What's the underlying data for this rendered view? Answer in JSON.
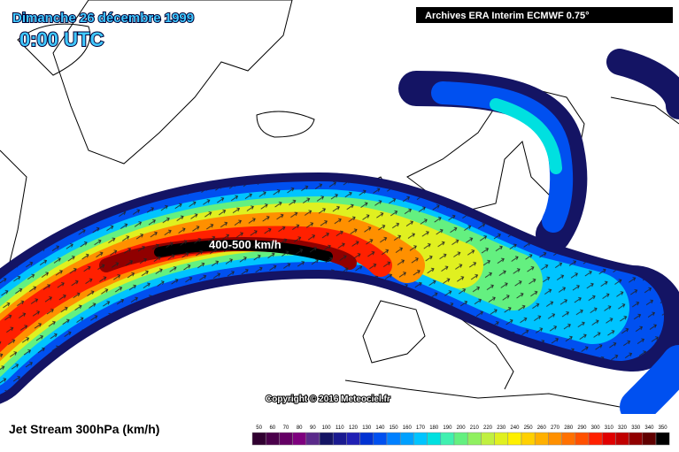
{
  "header": {
    "date": "Dimanche 26 décembre 1999",
    "time": "0:00 UTC",
    "source": "Archives ERA Interim ECMWF 0.75°"
  },
  "map": {
    "annotation": "400-500 km/h",
    "copyright": "Copyright © 2016 Meteociel.fr"
  },
  "footer": {
    "title": "Jet Stream 300hPa (km/h)",
    "legend": [
      {
        "label": 50,
        "color": "#300030"
      },
      {
        "label": 60,
        "color": "#4a004a"
      },
      {
        "label": 70,
        "color": "#640064"
      },
      {
        "label": 80,
        "color": "#7e007e"
      },
      {
        "label": 90,
        "color": "#5a2a8a"
      },
      {
        "label": 100,
        "color": "#141464"
      },
      {
        "label": 110,
        "color": "#1a1a90"
      },
      {
        "label": 120,
        "color": "#2020b4"
      },
      {
        "label": 130,
        "color": "#0032d2"
      },
      {
        "label": 140,
        "color": "#0050f0"
      },
      {
        "label": 150,
        "color": "#0080ff"
      },
      {
        "label": 160,
        "color": "#00a0ff"
      },
      {
        "label": 170,
        "color": "#00c4ff"
      },
      {
        "label": 180,
        "color": "#00e0e0"
      },
      {
        "label": 190,
        "color": "#40f0b0"
      },
      {
        "label": 200,
        "color": "#64f080"
      },
      {
        "label": 210,
        "color": "#90f060"
      },
      {
        "label": 220,
        "color": "#c0f040"
      },
      {
        "label": 230,
        "color": "#e0f020"
      },
      {
        "label": 240,
        "color": "#fff000"
      },
      {
        "label": 250,
        "color": "#ffd000"
      },
      {
        "label": 260,
        "color": "#ffb000"
      },
      {
        "label": 270,
        "color": "#ff9000"
      },
      {
        "label": 280,
        "color": "#ff7000"
      },
      {
        "label": 290,
        "color": "#ff5000"
      },
      {
        "label": 300,
        "color": "#ff2000"
      },
      {
        "label": 310,
        "color": "#e00000"
      },
      {
        "label": 320,
        "color": "#c00000"
      },
      {
        "label": 330,
        "color": "#900000"
      },
      {
        "label": 340,
        "color": "#600000"
      },
      {
        "label": 350,
        "color": "#000000"
      }
    ]
  }
}
